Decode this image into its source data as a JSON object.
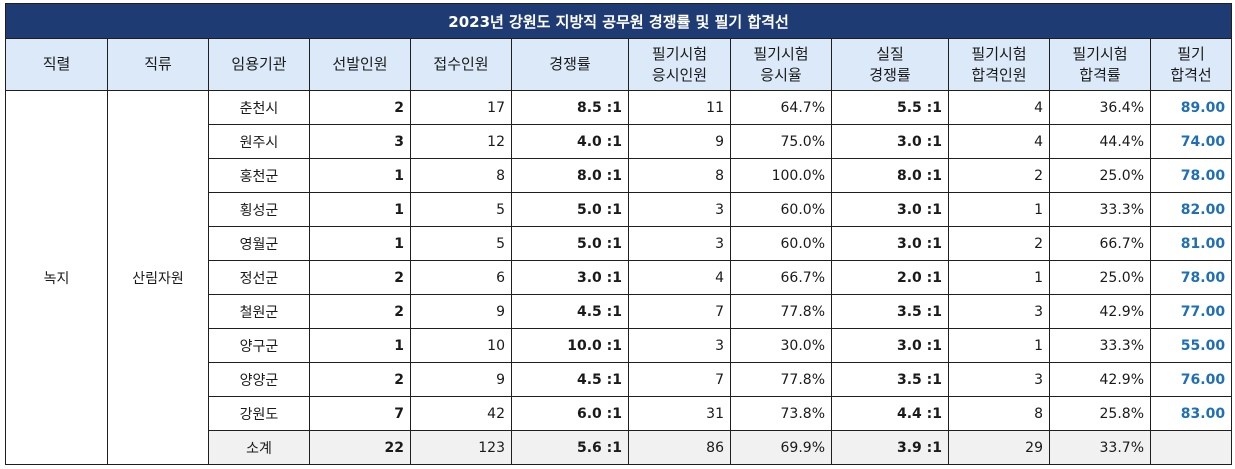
{
  "title": "2023년 강원도 지방직 공무원 경쟁률 및 필기 합격선",
  "headers": [
    [
      "직렬"
    ],
    [
      "직류"
    ],
    [
      "임용기관"
    ],
    [
      "선발인원"
    ],
    [
      "접수인원"
    ],
    [
      "경쟁률"
    ],
    [
      "필기시험",
      "응시인원"
    ],
    [
      "필기시험",
      "응시율"
    ],
    [
      "실질",
      "경쟁률"
    ],
    [
      "필기시험",
      "합격인원"
    ],
    [
      "필기시험",
      "합격률"
    ],
    [
      "필기",
      "합격선"
    ]
  ],
  "series": "녹지",
  "category": "산림자원",
  "rows": [
    {
      "agency": "춘천시",
      "selected": "2",
      "applied": "17",
      "ratio": "8.5 :1",
      "exam_takers": "11",
      "exam_rate": "64.7%",
      "real_ratio": "5.5 :1",
      "passed": "4",
      "pass_rate": "36.4%",
      "cutoff": "89.00"
    },
    {
      "agency": "원주시",
      "selected": "3",
      "applied": "12",
      "ratio": "4.0 :1",
      "exam_takers": "9",
      "exam_rate": "75.0%",
      "real_ratio": "3.0 :1",
      "passed": "4",
      "pass_rate": "44.4%",
      "cutoff": "74.00"
    },
    {
      "agency": "홍천군",
      "selected": "1",
      "applied": "8",
      "ratio": "8.0 :1",
      "exam_takers": "8",
      "exam_rate": "100.0%",
      "real_ratio": "8.0 :1",
      "passed": "2",
      "pass_rate": "25.0%",
      "cutoff": "78.00"
    },
    {
      "agency": "횡성군",
      "selected": "1",
      "applied": "5",
      "ratio": "5.0 :1",
      "exam_takers": "3",
      "exam_rate": "60.0%",
      "real_ratio": "3.0 :1",
      "passed": "1",
      "pass_rate": "33.3%",
      "cutoff": "82.00"
    },
    {
      "agency": "영월군",
      "selected": "1",
      "applied": "5",
      "ratio": "5.0 :1",
      "exam_takers": "3",
      "exam_rate": "60.0%",
      "real_ratio": "3.0 :1",
      "passed": "2",
      "pass_rate": "66.7%",
      "cutoff": "81.00"
    },
    {
      "agency": "정선군",
      "selected": "2",
      "applied": "6",
      "ratio": "3.0 :1",
      "exam_takers": "4",
      "exam_rate": "66.7%",
      "real_ratio": "2.0 :1",
      "passed": "1",
      "pass_rate": "25.0%",
      "cutoff": "78.00"
    },
    {
      "agency": "철원군",
      "selected": "2",
      "applied": "9",
      "ratio": "4.5 :1",
      "exam_takers": "7",
      "exam_rate": "77.8%",
      "real_ratio": "3.5 :1",
      "passed": "3",
      "pass_rate": "42.9%",
      "cutoff": "77.00"
    },
    {
      "agency": "양구군",
      "selected": "1",
      "applied": "10",
      "ratio": "10.0 :1",
      "exam_takers": "3",
      "exam_rate": "30.0%",
      "real_ratio": "3.0 :1",
      "passed": "1",
      "pass_rate": "33.3%",
      "cutoff": "55.00"
    },
    {
      "agency": "양양군",
      "selected": "2",
      "applied": "9",
      "ratio": "4.5 :1",
      "exam_takers": "7",
      "exam_rate": "77.8%",
      "real_ratio": "3.5 :1",
      "passed": "3",
      "pass_rate": "42.9%",
      "cutoff": "76.00"
    },
    {
      "agency": "강원도",
      "selected": "7",
      "applied": "42",
      "ratio": "6.0 :1",
      "exam_takers": "31",
      "exam_rate": "73.8%",
      "real_ratio": "4.4 :1",
      "passed": "8",
      "pass_rate": "25.8%",
      "cutoff": "83.00"
    }
  ],
  "summary": {
    "agency": "소계",
    "selected": "22",
    "applied": "123",
    "ratio": "5.6 :1",
    "exam_takers": "86",
    "exam_rate": "69.9%",
    "real_ratio": "3.9 :1",
    "passed": "29",
    "pass_rate": "33.7%",
    "cutoff": ""
  },
  "colors": {
    "title_bg": "#1f3b73",
    "header_bg": "#dbe9f8",
    "cutoff_text": "#1f6fb5",
    "summary_bg": "#f1f1f1"
  }
}
